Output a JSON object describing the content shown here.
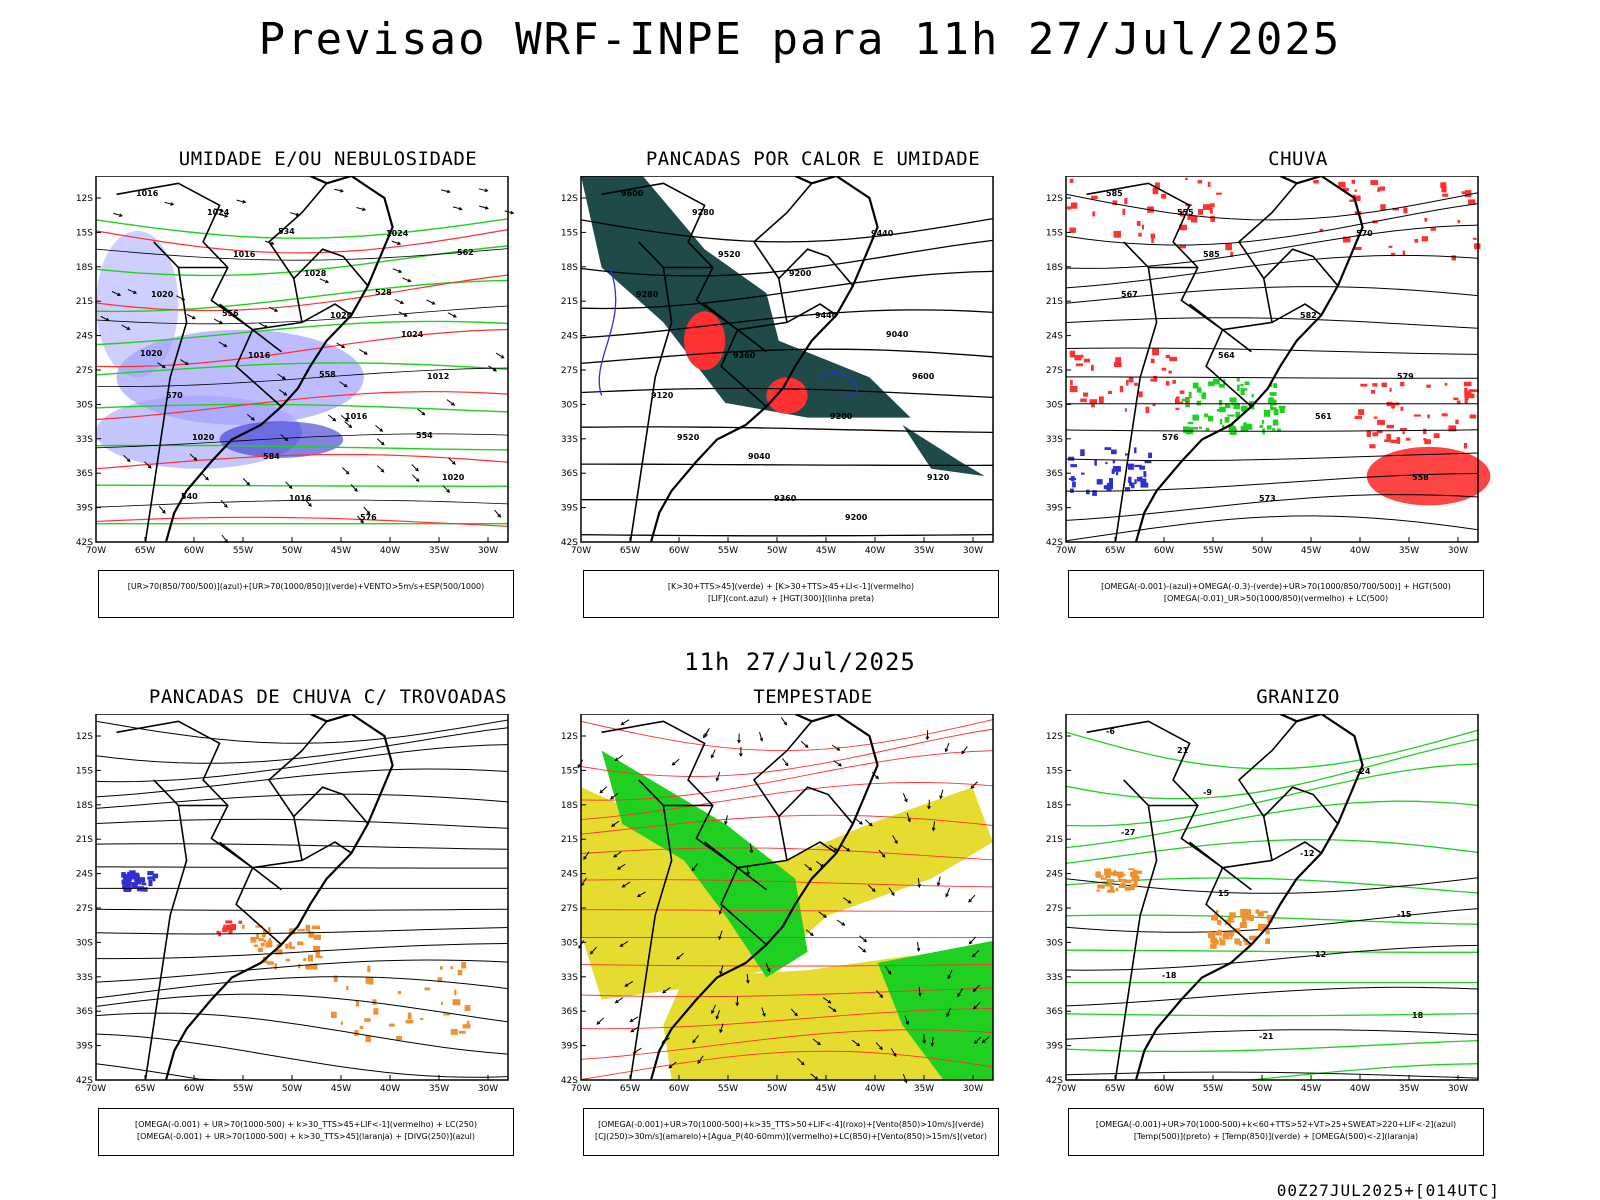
{
  "main_title": "Previsao WRF-INPE  para 11h 27/Jul/2025",
  "mid_title": "11h 27/Jul/2025",
  "footer": "00Z27JUL2025+[014UTC]",
  "lat_ticks": [
    "12S",
    "15S",
    "18S",
    "21S",
    "24S",
    "27S",
    "30S",
    "33S",
    "36S",
    "39S",
    "42S"
  ],
  "lon_ticks": [
    "70W",
    "65W",
    "60W",
    "55W",
    "50W",
    "45W",
    "40W",
    "35W",
    "30W"
  ],
  "colors": {
    "blue_humidity": "#a0a0ff",
    "dark_blue": "#3030d0",
    "green": "#20d020",
    "red": "#ff3030",
    "dark_teal": "#1e4a4a",
    "yellow": "#e6dc30",
    "orange": "#f09030",
    "contour": "#000000"
  },
  "panels": [
    {
      "id": "umidade",
      "title": "UMIDADE E/OU NEBULOSIDADE",
      "legend_lines": [
        "[UR>70(850/700/500)](azul)+[UR>70(1000/850)](verde)+VENTO>5m/s+ESP(500/1000)"
      ],
      "labels": [
        "1016",
        "1016",
        "1020",
        "1012",
        "1020",
        "1016",
        "1024",
        "1020",
        "1016",
        "1016",
        "1020",
        "1024",
        "1028",
        "1024",
        "570",
        "584",
        "576",
        "562",
        "556",
        "558",
        "554",
        "540",
        "534",
        "528",
        "1020"
      ]
    },
    {
      "id": "pancadas-calor",
      "title": "PANCADAS POR CALOR E UMIDADE",
      "legend_lines": [
        "[K>30+TTS>45](verde) + [K>30+TTS>45+LI<-1](vermelho)",
        "[LIF](cont.azul) + [HGT(300)](linha preta)"
      ],
      "labels": [
        "9600",
        "9520",
        "9440",
        "9600",
        "9520",
        "9360",
        "9440",
        "9280",
        "9360",
        "9200",
        "9120",
        "9280",
        "9200",
        "9040",
        "9120",
        "9040",
        "9200"
      ]
    },
    {
      "id": "chuva",
      "title": "CHUVA",
      "legend_lines": [
        "[OMEGA(-0.001)-(azul)+OMEGA(-0.3)-(verde)+UR>70(1000/850/700/500)] + HGT(500)",
        "[OMEGA(-0.01)_UR>50(1000/850)(vermelho) + LC(500)"
      ],
      "labels": [
        "585",
        "585",
        "582",
        "579",
        "576",
        "573",
        "570",
        "567",
        "564",
        "561",
        "558",
        "555"
      ]
    },
    {
      "id": "pancadas-trovoadas",
      "title": "PANCADAS DE CHUVA C/ TROVOADAS",
      "legend_lines": [
        "[OMEGA(-0.001) + UR>70(1000-500) + k>30_TTS>45+LIF<-1](vermelho) + LC(250)",
        "[OMEGA(-0.001) + UR>70(1000-500) + k>30_TTS>45](laranja) + [DIVG(250)](azul)"
      ],
      "labels": []
    },
    {
      "id": "tempestade",
      "title": "TEMPESTADE",
      "legend_lines": [
        "[OMEGA(-0.001)+UR>70(1000-500)+k>35_TTS>50+LIF<-4](roxo)+[Vento(850)>10m/s](verde)",
        "[CJ(250)>30m/s](amarelo)+[Agua_P(40-60mm)](vermelho)+LC(850)+[Vento(850)>15m/s](vetor)"
      ],
      "labels": []
    },
    {
      "id": "granizo",
      "title": "GRANIZO",
      "legend_lines": [
        "[OMEGA(-0.001)+UR>70(1000-500)+k<60+TTS>52+VT>25+SWEAT>220+LIF<-2](azul)",
        "[Temp(500)](preto) + [Temp(850)](verde) + [OMEGA(500)<-2](laranja)"
      ],
      "labels": [
        "-6",
        "-9",
        "-12",
        "-15",
        "-18",
        "-21",
        "-24",
        "-27",
        "15",
        "12",
        "18",
        "21"
      ]
    }
  ]
}
